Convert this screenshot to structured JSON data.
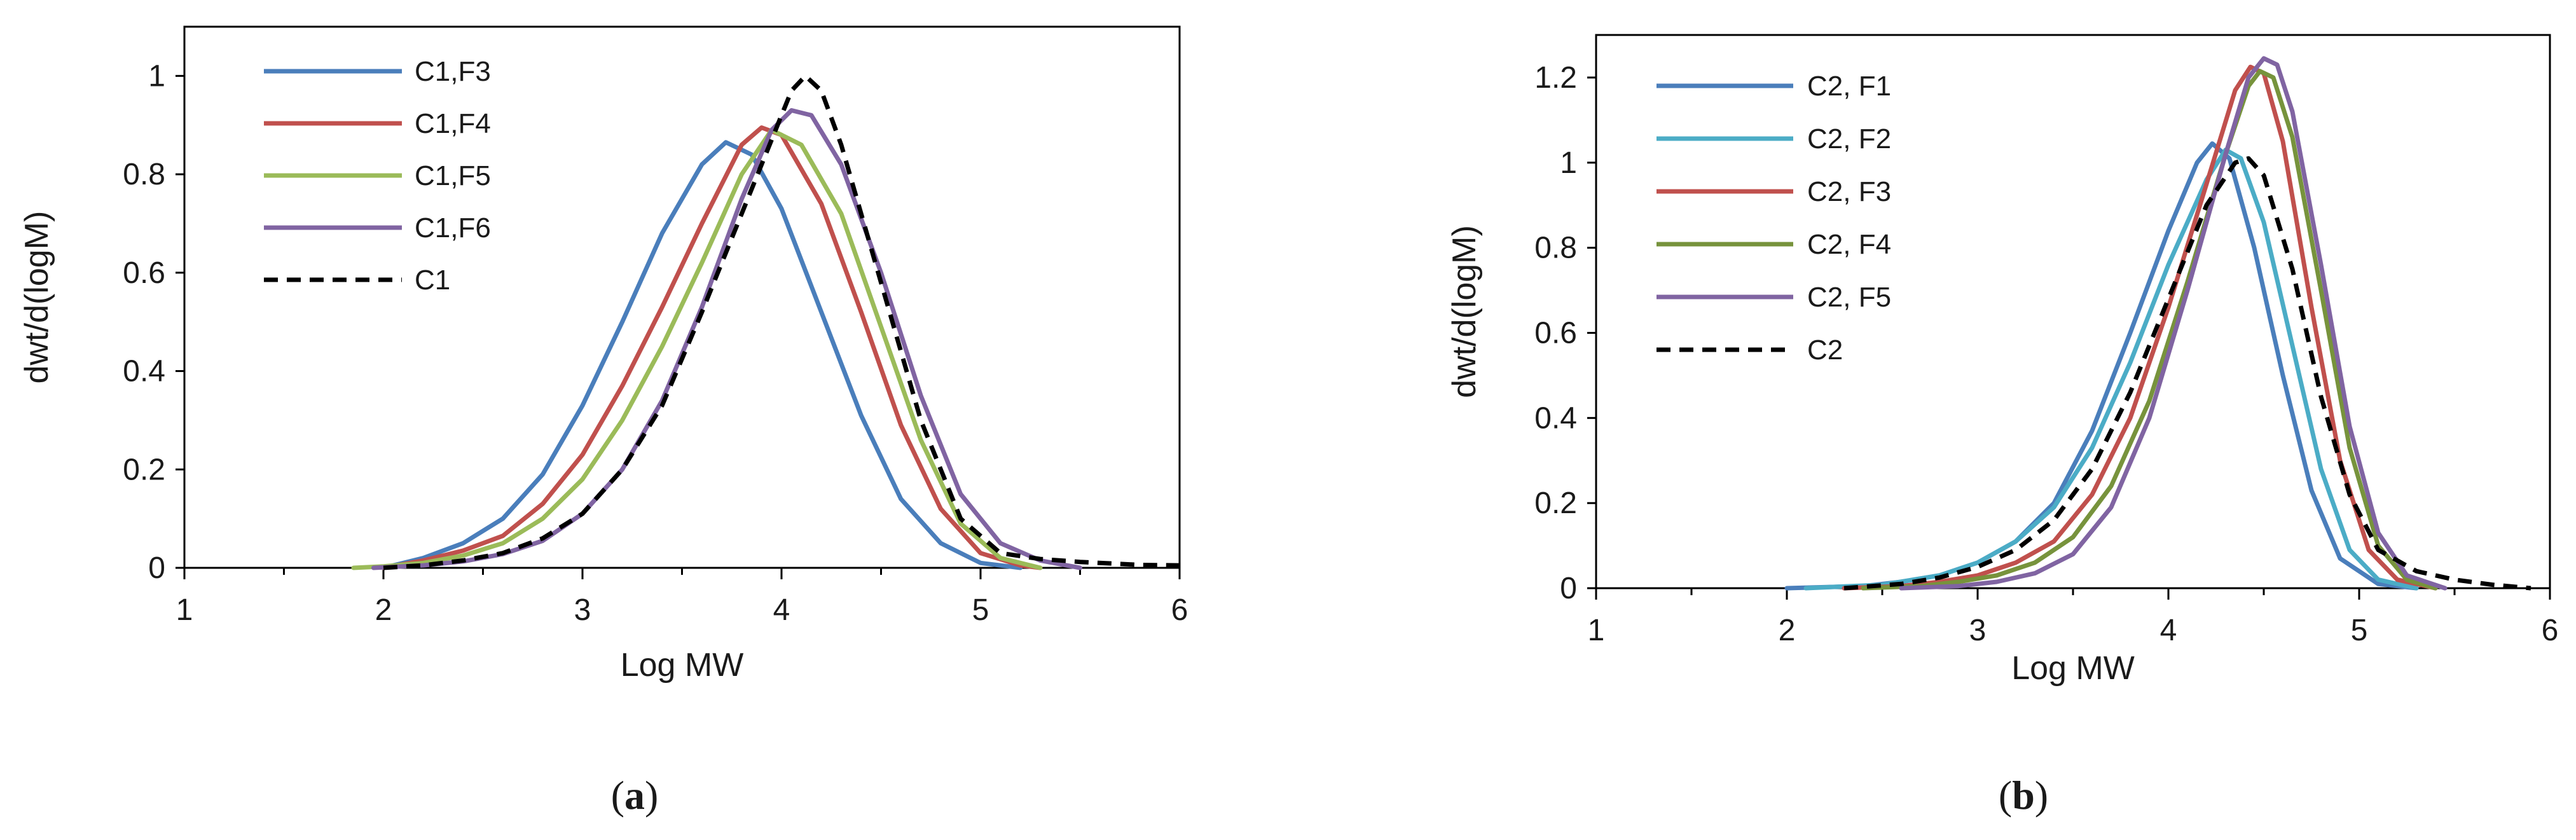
{
  "chart_data": [
    {
      "type": "line",
      "panel_label": "a",
      "title": "",
      "xlabel": "Log MW",
      "ylabel": "dwt/d(logM)",
      "xlim": [
        1,
        6
      ],
      "ylim": [
        0,
        1.1
      ],
      "xticks": [
        1,
        2,
        3,
        4,
        5,
        6
      ],
      "yticks": [
        0,
        0.2,
        0.4,
        0.6,
        0.8,
        1
      ],
      "ytick_labels": [
        "0",
        "0.2",
        "0.4",
        "0.6",
        "0.8",
        "1"
      ],
      "grid": false,
      "legend_position": "top-left",
      "series": [
        {
          "name": "C1,F3",
          "color": "#4a7ebb",
          "dash": "solid",
          "points": [
            [
              2.0,
              0.0
            ],
            [
              2.2,
              0.02
            ],
            [
              2.4,
              0.05
            ],
            [
              2.6,
              0.1
            ],
            [
              2.8,
              0.19
            ],
            [
              3.0,
              0.33
            ],
            [
              3.2,
              0.5
            ],
            [
              3.4,
              0.68
            ],
            [
              3.6,
              0.82
            ],
            [
              3.72,
              0.865
            ],
            [
              3.85,
              0.84
            ],
            [
              4.0,
              0.73
            ],
            [
              4.2,
              0.52
            ],
            [
              4.4,
              0.31
            ],
            [
              4.6,
              0.14
            ],
            [
              4.8,
              0.05
            ],
            [
              5.0,
              0.01
            ],
            [
              5.2,
              0.0
            ]
          ]
        },
        {
          "name": "C1,F4",
          "color": "#c0504d",
          "dash": "solid",
          "points": [
            [
              2.0,
              0.0
            ],
            [
              2.2,
              0.015
            ],
            [
              2.4,
              0.035
            ],
            [
              2.6,
              0.065
            ],
            [
              2.8,
              0.13
            ],
            [
              3.0,
              0.23
            ],
            [
              3.2,
              0.37
            ],
            [
              3.4,
              0.53
            ],
            [
              3.6,
              0.7
            ],
            [
              3.8,
              0.86
            ],
            [
              3.9,
              0.895
            ],
            [
              4.0,
              0.88
            ],
            [
              4.2,
              0.74
            ],
            [
              4.4,
              0.52
            ],
            [
              4.6,
              0.29
            ],
            [
              4.8,
              0.12
            ],
            [
              5.0,
              0.03
            ],
            [
              5.2,
              0.005
            ],
            [
              5.3,
              0.0
            ]
          ]
        },
        {
          "name": "C1,F5",
          "color": "#9bbb59",
          "dash": "solid",
          "points": [
            [
              1.85,
              0.0
            ],
            [
              2.0,
              0.003
            ],
            [
              2.2,
              0.01
            ],
            [
              2.4,
              0.025
            ],
            [
              2.6,
              0.05
            ],
            [
              2.8,
              0.1
            ],
            [
              3.0,
              0.18
            ],
            [
              3.2,
              0.3
            ],
            [
              3.4,
              0.45
            ],
            [
              3.6,
              0.62
            ],
            [
              3.8,
              0.8
            ],
            [
              3.95,
              0.89
            ],
            [
              4.1,
              0.86
            ],
            [
              4.3,
              0.72
            ],
            [
              4.5,
              0.49
            ],
            [
              4.7,
              0.26
            ],
            [
              4.9,
              0.09
            ],
            [
              5.1,
              0.02
            ],
            [
              5.3,
              0.0
            ]
          ]
        },
        {
          "name": "C1,F6",
          "color": "#8064a2",
          "dash": "solid",
          "points": [
            [
              1.95,
              0.0
            ],
            [
              2.2,
              0.005
            ],
            [
              2.4,
              0.013
            ],
            [
              2.6,
              0.028
            ],
            [
              2.8,
              0.055
            ],
            [
              3.0,
              0.11
            ],
            [
              3.2,
              0.2
            ],
            [
              3.4,
              0.34
            ],
            [
              3.6,
              0.53
            ],
            [
              3.8,
              0.75
            ],
            [
              3.95,
              0.89
            ],
            [
              4.05,
              0.93
            ],
            [
              4.15,
              0.92
            ],
            [
              4.3,
              0.82
            ],
            [
              4.5,
              0.6
            ],
            [
              4.7,
              0.35
            ],
            [
              4.9,
              0.15
            ],
            [
              5.1,
              0.05
            ],
            [
              5.3,
              0.015
            ],
            [
              5.5,
              0.0
            ]
          ]
        },
        {
          "name": "C1",
          "color": "#000000",
          "dash": "dashed",
          "points": [
            [
              2.0,
              0.0
            ],
            [
              2.2,
              0.005
            ],
            [
              2.4,
              0.015
            ],
            [
              2.6,
              0.03
            ],
            [
              2.8,
              0.06
            ],
            [
              3.0,
              0.11
            ],
            [
              3.2,
              0.2
            ],
            [
              3.4,
              0.33
            ],
            [
              3.6,
              0.52
            ],
            [
              3.8,
              0.72
            ],
            [
              3.95,
              0.87
            ],
            [
              4.05,
              0.97
            ],
            [
              4.12,
              1.0
            ],
            [
              4.2,
              0.97
            ],
            [
              4.3,
              0.86
            ],
            [
              4.5,
              0.58
            ],
            [
              4.7,
              0.3
            ],
            [
              4.9,
              0.1
            ],
            [
              5.1,
              0.03
            ],
            [
              5.3,
              0.018
            ],
            [
              5.5,
              0.012
            ],
            [
              5.8,
              0.006
            ],
            [
              6.0,
              0.005
            ]
          ]
        }
      ]
    },
    {
      "type": "line",
      "panel_label": "b",
      "title": "",
      "xlabel": "Log MW",
      "ylabel": "dwt/d(logM)",
      "xlim": [
        1,
        6
      ],
      "ylim": [
        0,
        1.3
      ],
      "xticks": [
        1,
        2,
        3,
        4,
        5,
        6
      ],
      "yticks": [
        0,
        0.2,
        0.4,
        0.6,
        0.8,
        1,
        1.2
      ],
      "ytick_labels": [
        "0",
        "0.2",
        "0.4",
        "0.6",
        "0.8",
        "1",
        "1.2"
      ],
      "grid": false,
      "legend_position": "top-left",
      "series": [
        {
          "name": "C2, F1",
          "color": "#4a7ebb",
          "dash": "solid",
          "points": [
            [
              2.0,
              0.0
            ],
            [
              2.4,
              0.005
            ],
            [
              2.6,
              0.015
            ],
            [
              2.8,
              0.03
            ],
            [
              3.0,
              0.06
            ],
            [
              3.2,
              0.11
            ],
            [
              3.4,
              0.2
            ],
            [
              3.6,
              0.37
            ],
            [
              3.8,
              0.6
            ],
            [
              4.0,
              0.84
            ],
            [
              4.15,
              1.0
            ],
            [
              4.23,
              1.045
            ],
            [
              4.32,
              1.01
            ],
            [
              4.45,
              0.8
            ],
            [
              4.6,
              0.5
            ],
            [
              4.75,
              0.23
            ],
            [
              4.9,
              0.07
            ],
            [
              5.1,
              0.01
            ],
            [
              5.3,
              0.0
            ]
          ]
        },
        {
          "name": "C2, F2",
          "color": "#4bacc6",
          "dash": "solid",
          "points": [
            [
              2.1,
              0.0
            ],
            [
              2.5,
              0.008
            ],
            [
              2.8,
              0.03
            ],
            [
              3.0,
              0.06
            ],
            [
              3.2,
              0.11
            ],
            [
              3.4,
              0.19
            ],
            [
              3.6,
              0.33
            ],
            [
              3.8,
              0.53
            ],
            [
              4.0,
              0.76
            ],
            [
              4.2,
              0.96
            ],
            [
              4.3,
              1.03
            ],
            [
              4.38,
              1.01
            ],
            [
              4.5,
              0.86
            ],
            [
              4.65,
              0.57
            ],
            [
              4.8,
              0.28
            ],
            [
              4.95,
              0.09
            ],
            [
              5.1,
              0.02
            ],
            [
              5.3,
              0.0
            ]
          ]
        },
        {
          "name": "C2, F3",
          "color": "#c0504d",
          "dash": "solid",
          "points": [
            [
              2.3,
              0.0
            ],
            [
              2.6,
              0.005
            ],
            [
              2.8,
              0.015
            ],
            [
              3.0,
              0.03
            ],
            [
              3.2,
              0.06
            ],
            [
              3.4,
              0.11
            ],
            [
              3.6,
              0.22
            ],
            [
              3.8,
              0.4
            ],
            [
              4.0,
              0.66
            ],
            [
              4.2,
              0.95
            ],
            [
              4.35,
              1.17
            ],
            [
              4.43,
              1.225
            ],
            [
              4.5,
              1.21
            ],
            [
              4.6,
              1.05
            ],
            [
              4.75,
              0.66
            ],
            [
              4.9,
              0.3
            ],
            [
              5.05,
              0.09
            ],
            [
              5.2,
              0.02
            ],
            [
              5.4,
              0.0
            ]
          ]
        },
        {
          "name": "C2, F4",
          "color": "#77933c",
          "dash": "solid",
          "points": [
            [
              2.4,
              0.0
            ],
            [
              2.7,
              0.005
            ],
            [
              2.9,
              0.015
            ],
            [
              3.1,
              0.03
            ],
            [
              3.3,
              0.06
            ],
            [
              3.5,
              0.12
            ],
            [
              3.7,
              0.24
            ],
            [
              3.9,
              0.44
            ],
            [
              4.1,
              0.72
            ],
            [
              4.3,
              1.02
            ],
            [
              4.42,
              1.18
            ],
            [
              4.48,
              1.215
            ],
            [
              4.55,
              1.2
            ],
            [
              4.65,
              1.06
            ],
            [
              4.8,
              0.7
            ],
            [
              4.95,
              0.33
            ],
            [
              5.1,
              0.1
            ],
            [
              5.25,
              0.02
            ],
            [
              5.4,
              0.0
            ]
          ]
        },
        {
          "name": "C2, F5",
          "color": "#8064a2",
          "dash": "solid",
          "points": [
            [
              2.6,
              0.0
            ],
            [
              2.9,
              0.005
            ],
            [
              3.1,
              0.015
            ],
            [
              3.3,
              0.035
            ],
            [
              3.5,
              0.08
            ],
            [
              3.7,
              0.19
            ],
            [
              3.9,
              0.4
            ],
            [
              4.1,
              0.7
            ],
            [
              4.3,
              1.02
            ],
            [
              4.42,
              1.2
            ],
            [
              4.5,
              1.245
            ],
            [
              4.57,
              1.23
            ],
            [
              4.65,
              1.12
            ],
            [
              4.8,
              0.76
            ],
            [
              4.95,
              0.38
            ],
            [
              5.1,
              0.13
            ],
            [
              5.25,
              0.03
            ],
            [
              5.45,
              0.0
            ]
          ]
        },
        {
          "name": "C2",
          "color": "#000000",
          "dash": "dashed",
          "points": [
            [
              2.3,
              0.0
            ],
            [
              2.6,
              0.01
            ],
            [
              2.8,
              0.025
            ],
            [
              3.0,
              0.05
            ],
            [
              3.2,
              0.09
            ],
            [
              3.4,
              0.16
            ],
            [
              3.6,
              0.28
            ],
            [
              3.8,
              0.46
            ],
            [
              4.0,
              0.68
            ],
            [
              4.2,
              0.9
            ],
            [
              4.35,
              1.0
            ],
            [
              4.42,
              1.01
            ],
            [
              4.5,
              0.97
            ],
            [
              4.65,
              0.75
            ],
            [
              4.8,
              0.45
            ],
            [
              4.95,
              0.22
            ],
            [
              5.1,
              0.09
            ],
            [
              5.3,
              0.04
            ],
            [
              5.5,
              0.02
            ],
            [
              5.7,
              0.008
            ],
            [
              5.9,
              0.0
            ]
          ]
        }
      ]
    }
  ]
}
